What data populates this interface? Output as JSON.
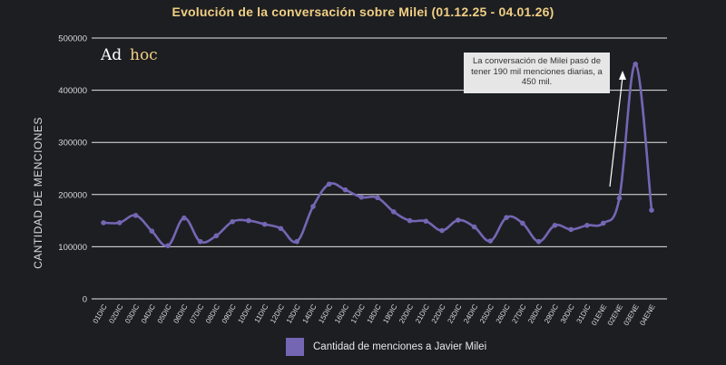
{
  "chart_data": {
    "type": "line",
    "title": "Evolución de la conversación sobre Milei (01.12.25 - 04.01.26)",
    "ylabel": "CANTIDAD DE MENCIONES",
    "xlabel": "",
    "ylim": [
      0,
      500000
    ],
    "yticks": [
      "0",
      "100000",
      "200000",
      "300000",
      "400000",
      "500000"
    ],
    "grid": true,
    "legend_position": "bottom",
    "categories": [
      "01DIC",
      "02DIC",
      "03DIC",
      "04DIC",
      "05DIC",
      "06DIC",
      "07DIC",
      "08DIC",
      "09DIC",
      "10DIC",
      "11DIC",
      "12DIC",
      "13DIC",
      "14DIC",
      "15DIC",
      "16DIC",
      "17DIC",
      "18DIC",
      "19DIC",
      "20DIC",
      "21DIC",
      "22DIC",
      "23DIC",
      "24DIC",
      "25DIC",
      "26DIC",
      "27DIC",
      "28DIC",
      "29DIC",
      "30DIC",
      "31DIC",
      "01ENE",
      "02ENE",
      "03ENE",
      "04ENE"
    ],
    "series": [
      {
        "name": "Cantidad de menciones a Javier Milei",
        "color": "#7566b4",
        "values": [
          146000,
          146000,
          160000,
          130000,
          102000,
          155000,
          110000,
          121000,
          148000,
          150000,
          143000,
          135000,
          110000,
          177000,
          220000,
          209000,
          195000,
          194000,
          167000,
          150000,
          149000,
          131000,
          151000,
          138000,
          111000,
          156000,
          145000,
          110000,
          141000,
          133000,
          141000,
          145000,
          193000,
          450000,
          170000
        ]
      }
    ],
    "annotation": {
      "text": "La conversación de Milei pasó de tener 190 mil menciones diarias, a 450 mil."
    }
  },
  "logo": {
    "ad": "Ad",
    "hoc": "hoc"
  },
  "colors": {
    "background": "#1d1e22",
    "title": "#f0cf83",
    "grid": "#e6e6e6"
  }
}
